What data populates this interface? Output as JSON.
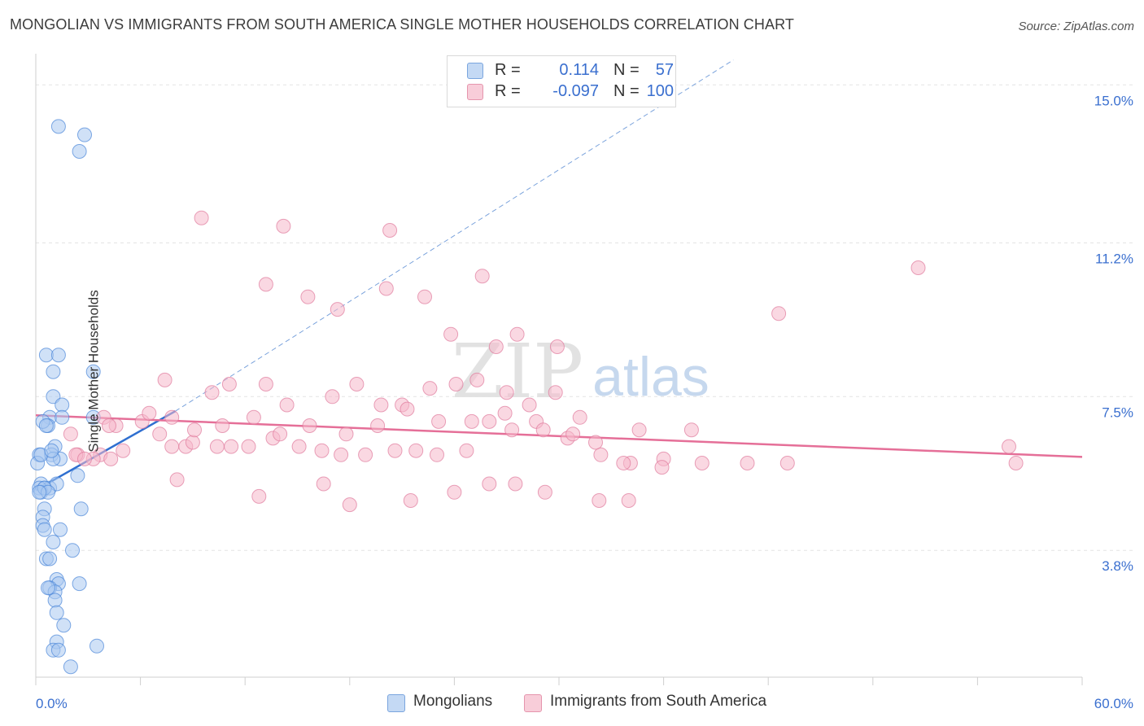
{
  "title": "MONGOLIAN VS IMMIGRANTS FROM SOUTH AMERICA SINGLE MOTHER HOUSEHOLDS CORRELATION CHART",
  "source": "Source: ZipAtlas.com",
  "watermark": {
    "zip": "ZIP",
    "atlas": "atlas"
  },
  "legend": [
    {
      "r_label": "R =",
      "r_value": "0.114",
      "n_label": "N =",
      "n_value": "57",
      "color": "#a9c8f0"
    },
    {
      "r_label": "R =",
      "r_value": "-0.097",
      "n_label": "N =",
      "n_value": "100",
      "color": "#f5b8cb"
    }
  ],
  "chart_data": {
    "type": "scatter",
    "title": "MONGOLIAN VS IMMIGRANTS FROM SOUTH AMERICA SINGLE MOTHER HOUSEHOLDS CORRELATION CHART",
    "xlabel": "",
    "ylabel": "Single Mother Households",
    "xlim": [
      0,
      60
    ],
    "ylim": [
      0.75,
      15.75
    ],
    "x_tick_labels": [
      "0.0%",
      "60.0%"
    ],
    "y_ticks": [
      3.8,
      7.5,
      11.2,
      15.0
    ],
    "y_tick_labels": [
      "3.8%",
      "7.5%",
      "11.2%",
      "15.0%"
    ],
    "grid": true,
    "legend_position": "top-center",
    "series": [
      {
        "name": "Mongolians",
        "color": "#4a86d8",
        "fill": "#a9c8f0",
        "trend": {
          "x": [
            0.0,
            8.0
          ],
          "y": [
            5.25,
            7.15
          ],
          "style": "solid",
          "color": "#2f6fd0"
        },
        "trend_extended": {
          "x": [
            8.0,
            40.0
          ],
          "y": [
            7.15,
            15.6
          ],
          "style": "dashed",
          "color": "#7ba3dc"
        },
        "x": [
          1.3,
          2.8,
          2.5,
          0.6,
          1.0,
          1.3,
          3.3,
          1.0,
          0.8,
          1.5,
          0.7,
          0.4,
          0.6,
          1.1,
          0.2,
          0.9,
          1.4,
          2.4,
          0.3,
          0.5,
          0.8,
          1.2,
          0.2,
          0.3,
          0.5,
          0.7,
          1.0,
          0.1,
          0.3,
          0.2,
          0.5,
          0.4,
          2.6,
          3.3,
          1.5,
          0.4,
          1.4,
          0.5,
          1.0,
          2.1,
          0.6,
          0.8,
          1.2,
          1.3,
          2.5,
          0.8,
          1.1,
          0.7,
          1.1,
          1.2,
          1.6,
          1.2,
          1.0,
          1.3,
          3.5,
          2.0,
          0.9
        ],
        "y": [
          14.0,
          13.8,
          13.4,
          8.5,
          8.1,
          8.5,
          8.1,
          7.5,
          7.0,
          7.3,
          6.8,
          6.9,
          6.8,
          6.3,
          6.1,
          6.1,
          6.0,
          5.6,
          5.4,
          5.3,
          5.3,
          5.4,
          5.3,
          5.2,
          5.3,
          5.2,
          6.0,
          5.9,
          6.1,
          5.2,
          4.8,
          4.6,
          4.8,
          7.0,
          7.0,
          4.4,
          4.3,
          4.3,
          4.0,
          3.8,
          3.6,
          3.6,
          3.1,
          3.0,
          3.0,
          2.9,
          2.8,
          2.9,
          2.6,
          2.3,
          2.0,
          1.6,
          1.4,
          1.4,
          1.5,
          1.0,
          6.2
        ]
      },
      {
        "name": "Immigrants from South America",
        "color": "#e07a9c",
        "fill": "#f5b8cb",
        "trend": {
          "x": [
            0.0,
            60.0
          ],
          "y": [
            7.05,
            6.05
          ],
          "style": "solid",
          "color": "#e56f98"
        },
        "x": [
          9.5,
          14.2,
          13.2,
          15.6,
          20.3,
          17.3,
          20.1,
          25.6,
          22.3,
          23.8,
          27.6,
          26.4,
          29.9,
          42.6,
          50.6,
          7.4,
          10.1,
          11.1,
          13.2,
          14.4,
          17.0,
          18.4,
          19.8,
          21.0,
          22.6,
          24.1,
          25.3,
          27.0,
          28.3,
          29.8,
          31.2,
          34.6,
          6.1,
          7.1,
          7.8,
          8.6,
          9.0,
          10.4,
          11.2,
          12.2,
          13.6,
          15.1,
          16.4,
          17.5,
          18.9,
          20.6,
          21.8,
          23.0,
          24.7,
          26.0,
          27.3,
          28.7,
          30.5,
          32.4,
          34.1,
          36.0,
          37.6,
          2.4,
          3.7,
          4.6,
          3.9,
          4.2,
          2.0,
          2.3,
          3.3,
          2.8,
          5.0,
          6.5,
          7.8,
          9.1,
          10.7,
          12.5,
          14.0,
          15.7,
          17.8,
          19.6,
          21.3,
          23.1,
          25.0,
          26.9,
          29.1,
          30.8,
          32.1,
          33.7,
          35.9,
          38.2,
          40.8,
          43.1,
          4.3,
          8.1,
          12.8,
          16.5,
          18.0,
          21.5,
          24.0,
          26.0,
          27.5,
          29.2,
          32.3,
          34.0,
          55.8,
          56.2
        ],
        "y": [
          11.8,
          11.6,
          10.2,
          9.9,
          11.5,
          9.6,
          10.1,
          10.4,
          9.9,
          9.0,
          9.0,
          8.7,
          8.7,
          9.5,
          10.6,
          7.9,
          7.6,
          7.8,
          7.8,
          7.3,
          7.5,
          7.8,
          7.3,
          7.3,
          7.7,
          7.8,
          7.9,
          7.6,
          7.3,
          7.6,
          7.0,
          6.7,
          6.9,
          6.6,
          6.3,
          6.3,
          6.4,
          6.3,
          6.3,
          6.3,
          6.5,
          6.3,
          6.2,
          6.1,
          6.1,
          6.2,
          6.2,
          6.1,
          6.2,
          6.9,
          6.7,
          6.9,
          6.5,
          6.1,
          5.9,
          6.0,
          6.7,
          6.1,
          6.1,
          6.8,
          7.0,
          6.8,
          6.6,
          6.1,
          6.0,
          6.0,
          6.2,
          7.1,
          7.0,
          6.7,
          6.8,
          7.0,
          6.6,
          6.8,
          6.6,
          6.8,
          7.2,
          6.9,
          6.9,
          7.1,
          6.7,
          6.6,
          6.4,
          5.9,
          5.8,
          5.9,
          5.9,
          5.9,
          6.0,
          5.5,
          5.1,
          5.4,
          4.9,
          5.0,
          5.2,
          5.4,
          5.4,
          5.2,
          5.0,
          5.0,
          6.3,
          5.9
        ]
      }
    ]
  },
  "bottom_legend": [
    {
      "label": "Mongolians",
      "color": "#a9c8f0"
    },
    {
      "label": "Immigrants from South America",
      "color": "#f5b8cb"
    }
  ]
}
